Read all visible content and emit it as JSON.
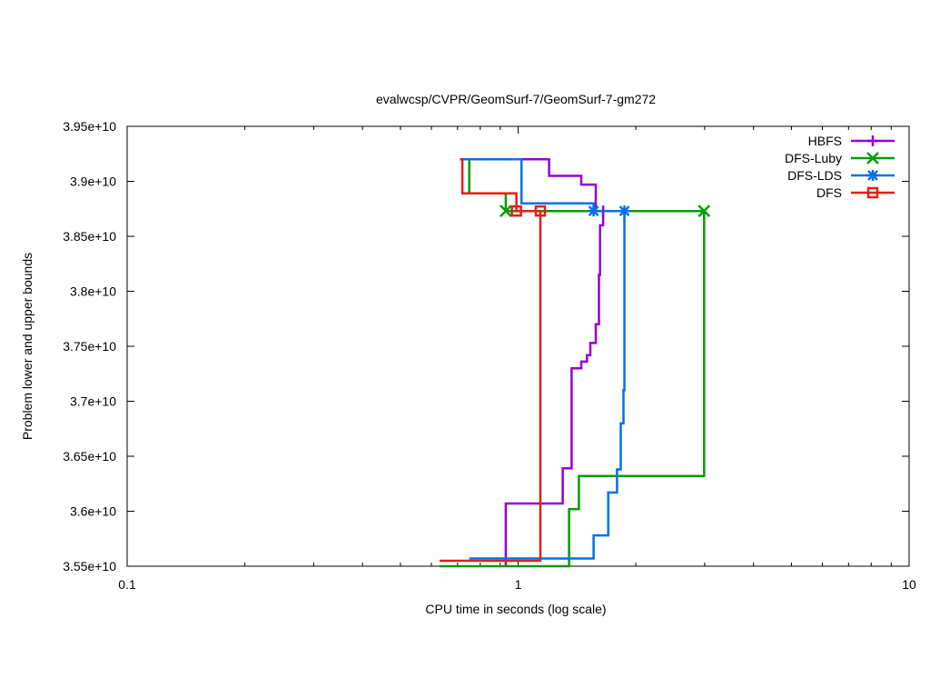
{
  "chart_data": {
    "type": "line",
    "title": "evalwcsp/CVPR/GeomSurf-7/GeomSurf-7-gm272",
    "xlabel": "CPU time in seconds (log scale)",
    "ylabel": "Problem lower and upper bounds",
    "x_scale": "log",
    "xlim": [
      0.1,
      10
    ],
    "ylim": [
      35500000000,
      39500000000
    ],
    "grid": false,
    "legend_position": "top-right",
    "x_ticks": [
      {
        "value": 0.1,
        "label": "0.1"
      },
      {
        "value": 1,
        "label": "1"
      },
      {
        "value": 10,
        "label": "10"
      }
    ],
    "y_ticks": [
      {
        "value": 35500000000,
        "label": "3.55e+10"
      },
      {
        "value": 36000000000,
        "label": "3.6e+10"
      },
      {
        "value": 36500000000,
        "label": "3.65e+10"
      },
      {
        "value": 37000000000,
        "label": "3.7e+10"
      },
      {
        "value": 37500000000,
        "label": "3.75e+10"
      },
      {
        "value": 38000000000,
        "label": "3.8e+10"
      },
      {
        "value": 38500000000,
        "label": "3.85e+10"
      },
      {
        "value": 39000000000,
        "label": "3.9e+10"
      },
      {
        "value": 39500000000,
        "label": "3.95e+10"
      }
    ],
    "series": [
      {
        "name": "HBFS",
        "color": "#9400d3",
        "marker": "plus",
        "upper": [
          [
            0.72,
            39200000000
          ],
          [
            1.2,
            39200000000
          ],
          [
            1.2,
            39050000000
          ],
          [
            1.45,
            39050000000
          ],
          [
            1.45,
            38970000000
          ],
          [
            1.58,
            38970000000
          ],
          [
            1.58,
            38730000000
          ],
          [
            1.65,
            38730000000
          ]
        ],
        "lower": [
          [
            0.93,
            35500000000
          ],
          [
            0.93,
            36070000000
          ],
          [
            1.3,
            36070000000
          ],
          [
            1.3,
            36390000000
          ],
          [
            1.37,
            36390000000
          ],
          [
            1.37,
            37300000000
          ],
          [
            1.45,
            37300000000
          ],
          [
            1.45,
            37360000000
          ],
          [
            1.5,
            37360000000
          ],
          [
            1.5,
            37420000000
          ],
          [
            1.53,
            37420000000
          ],
          [
            1.53,
            37530000000
          ],
          [
            1.58,
            37530000000
          ],
          [
            1.58,
            37700000000
          ],
          [
            1.61,
            37700000000
          ],
          [
            1.61,
            38150000000
          ],
          [
            1.62,
            38150000000
          ],
          [
            1.62,
            38600000000
          ],
          [
            1.65,
            38600000000
          ],
          [
            1.65,
            38730000000
          ]
        ],
        "markers": [
          [
            1.65,
            38730000000
          ]
        ]
      },
      {
        "name": "DFS-Luby",
        "color": "#009e00",
        "marker": "cross",
        "upper": [
          [
            0.72,
            39200000000
          ],
          [
            0.75,
            39200000000
          ],
          [
            0.75,
            38890000000
          ],
          [
            0.93,
            38890000000
          ],
          [
            0.93,
            38730000000
          ],
          [
            2.99,
            38730000000
          ]
        ],
        "lower": [
          [
            0.63,
            35500000000
          ],
          [
            1.35,
            35500000000
          ],
          [
            1.35,
            36020000000
          ],
          [
            1.43,
            36020000000
          ],
          [
            1.43,
            36320000000
          ],
          [
            2.99,
            36320000000
          ],
          [
            2.99,
            38730000000
          ]
        ],
        "markers": [
          [
            0.93,
            38730000000
          ],
          [
            2.99,
            38730000000
          ]
        ]
      },
      {
        "name": "DFS-LDS",
        "color": "#0072e5",
        "marker": "star",
        "upper": [
          [
            0.71,
            39200000000
          ],
          [
            1.02,
            39200000000
          ],
          [
            1.02,
            38800000000
          ],
          [
            1.56,
            38800000000
          ],
          [
            1.56,
            38730000000
          ],
          [
            1.87,
            38730000000
          ]
        ],
        "lower": [
          [
            0.75,
            35570000000
          ],
          [
            1.56,
            35570000000
          ],
          [
            1.56,
            35780000000
          ],
          [
            1.7,
            35780000000
          ],
          [
            1.7,
            36170000000
          ],
          [
            1.79,
            36170000000
          ],
          [
            1.79,
            36380000000
          ],
          [
            1.83,
            36380000000
          ],
          [
            1.83,
            36800000000
          ],
          [
            1.86,
            36800000000
          ],
          [
            1.86,
            37100000000
          ],
          [
            1.87,
            37100000000
          ],
          [
            1.87,
            38730000000
          ]
        ],
        "markers": [
          [
            1.56,
            38730000000
          ],
          [
            1.87,
            38730000000
          ]
        ]
      },
      {
        "name": "DFS",
        "color": "#e51e10",
        "marker": "square",
        "upper": [
          [
            0.71,
            39200000000
          ],
          [
            0.72,
            39200000000
          ],
          [
            0.72,
            38890000000
          ],
          [
            0.99,
            38890000000
          ],
          [
            0.99,
            38730000000
          ],
          [
            1.14,
            38730000000
          ]
        ],
        "lower": [
          [
            0.63,
            35550000000
          ],
          [
            1.14,
            35550000000
          ],
          [
            1.14,
            38730000000
          ]
        ],
        "markers": [
          [
            0.99,
            38730000000
          ],
          [
            1.14,
            38730000000
          ]
        ]
      }
    ]
  }
}
